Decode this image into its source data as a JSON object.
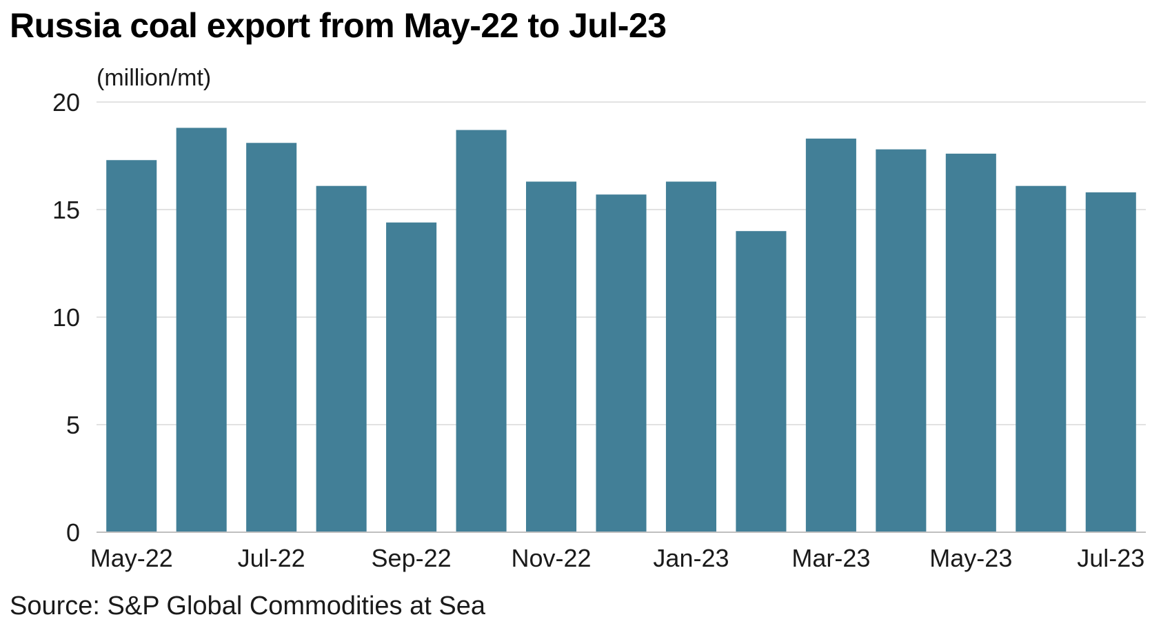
{
  "title": "Russia coal export from May-22 to Jul-23",
  "source": "Source: S&P Global Commodities at Sea",
  "colors": {
    "bar": "#427f97",
    "grid": "#d9d9d9",
    "axis": "#bfbfbf"
  },
  "chart_data": {
    "type": "bar",
    "categories": [
      "May-22",
      "Jun-22",
      "Jul-22",
      "Aug-22",
      "Sep-22",
      "Oct-22",
      "Nov-22",
      "Dec-22",
      "Jan-23",
      "Feb-23",
      "Mar-23",
      "Apr-23",
      "May-23",
      "Jun-23",
      "Jul-23"
    ],
    "x_tick_labels": [
      "May-22",
      "Jul-22",
      "Sep-22",
      "Nov-22",
      "Jan-23",
      "Mar-23",
      "May-23",
      "Jul-23"
    ],
    "values": [
      17.3,
      18.8,
      18.1,
      16.1,
      14.4,
      18.7,
      16.3,
      15.7,
      16.3,
      14.0,
      18.3,
      17.8,
      17.6,
      16.1,
      15.8
    ],
    "ylabel": "(million/mt)",
    "ylim": [
      0,
      20
    ],
    "yticks": [
      0,
      5,
      10,
      15,
      20
    ],
    "grid": true,
    "legend": "none"
  }
}
